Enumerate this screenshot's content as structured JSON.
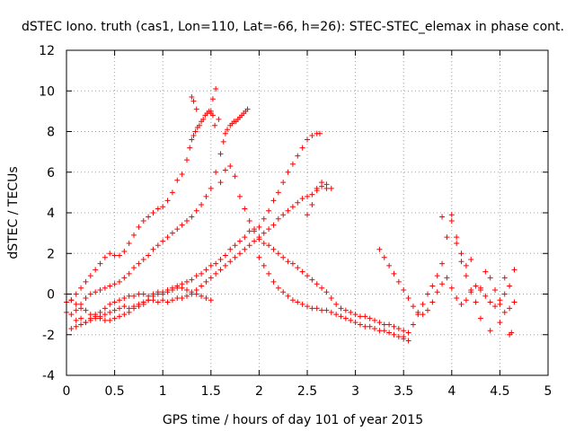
{
  "chart_data": {
    "type": "scatter",
    "title": "dSTEC Iono. truth (cas1, Lon=110, Lat=-66, h=26): STEC-STEC_elemax in phase cont.",
    "xlabel": "GPS time / hours of day 101 of year 2015",
    "ylabel": "dSTEC  / TECUs",
    "xlim": [
      0,
      5
    ],
    "ylim": [
      -4,
      12
    ],
    "xticks": [
      "0",
      "0.5",
      "1",
      "1.5",
      "2",
      "2.5",
      "3",
      "3.5",
      "4",
      "4.5",
      "5"
    ],
    "yticks": [
      "-4",
      "-2",
      "0",
      "2",
      "4",
      "6",
      "8",
      "10",
      "12"
    ],
    "grid": true,
    "marker": "plus",
    "color": "#ff0000",
    "series": [
      {
        "x": [
          0.0,
          0.05,
          0.1,
          0.15,
          0.2,
          0.25,
          0.3,
          0.35,
          0.4,
          0.45,
          0.5,
          0.55,
          0.6,
          0.65,
          0.7,
          0.75,
          0.8,
          0.85,
          0.9,
          0.95,
          1.0,
          1.05,
          1.1,
          1.15,
          1.2,
          1.25,
          1.28,
          1.3,
          1.32,
          1.34,
          1.36,
          1.38,
          1.4,
          1.42,
          1.44,
          1.46,
          1.48,
          1.5,
          1.52,
          1.54
        ],
        "y": [
          -0.4,
          -0.3,
          0.0,
          0.3,
          0.6,
          0.9,
          1.2,
          1.5,
          1.8,
          2.0,
          1.9,
          1.9,
          2.1,
          2.5,
          2.9,
          3.3,
          3.6,
          3.8,
          4.0,
          4.2,
          4.3,
          4.6,
          5.0,
          5.6,
          5.9,
          6.6,
          7.2,
          7.6,
          7.8,
          8.0,
          8.2,
          8.3,
          8.5,
          8.6,
          8.8,
          8.9,
          9.0,
          9.0,
          8.8,
          8.3
        ]
      },
      {
        "x": [
          0.0,
          0.05,
          0.1,
          0.15,
          0.2,
          0.25,
          0.3,
          0.35,
          0.4,
          0.45,
          0.5,
          0.55,
          0.6,
          0.65,
          0.7,
          0.75,
          0.8,
          0.85,
          0.9,
          0.95,
          1.0,
          1.05,
          1.1,
          1.15,
          1.2,
          1.25,
          1.3,
          1.35,
          1.4,
          1.45,
          1.5,
          1.55,
          1.6,
          1.63,
          1.65,
          1.67,
          1.7,
          1.72,
          1.74,
          1.76,
          1.78,
          1.8,
          1.82,
          1.84,
          1.86,
          1.88
        ],
        "y": [
          -0.9,
          -1.0,
          -0.8,
          -0.5,
          -0.2,
          0.0,
          0.1,
          0.2,
          0.3,
          0.4,
          0.5,
          0.6,
          0.8,
          1.0,
          1.3,
          1.5,
          1.7,
          1.9,
          2.2,
          2.4,
          2.6,
          2.8,
          3.0,
          3.2,
          3.4,
          3.6,
          3.8,
          4.1,
          4.4,
          4.8,
          5.2,
          6.0,
          6.9,
          7.5,
          7.9,
          8.1,
          8.3,
          8.4,
          8.5,
          8.5,
          8.6,
          8.7,
          8.8,
          8.9,
          9.0,
          9.1
        ]
      },
      {
        "x": [
          0.05,
          0.1,
          0.15,
          0.2,
          0.25,
          0.3,
          0.35,
          0.4,
          0.45,
          0.5,
          0.55,
          0.6,
          0.65,
          0.7,
          0.75,
          0.8,
          0.85,
          0.9,
          0.95,
          1.0,
          1.05,
          1.1,
          1.15,
          1.2,
          1.25,
          1.3,
          1.35,
          1.4,
          1.45,
          1.5,
          1.55,
          1.6,
          1.65,
          1.7,
          1.75,
          1.8,
          1.85,
          1.9,
          1.95,
          2.0,
          2.05,
          2.1,
          2.15,
          2.2,
          2.25,
          2.3,
          2.35,
          2.4,
          2.45,
          2.5,
          2.55,
          2.6,
          2.63
        ],
        "y": [
          -1.7,
          -1.6,
          -1.5,
          -1.4,
          -1.2,
          -1.0,
          -0.9,
          -0.7,
          -0.5,
          -0.4,
          -0.3,
          -0.2,
          -0.1,
          -0.1,
          0.0,
          0.0,
          -0.1,
          0.0,
          0.1,
          0.1,
          0.2,
          0.3,
          0.4,
          0.5,
          0.6,
          0.7,
          0.9,
          1.0,
          1.2,
          1.4,
          1.5,
          1.7,
          1.9,
          2.2,
          2.4,
          2.6,
          2.8,
          3.1,
          3.2,
          3.3,
          3.7,
          4.1,
          4.6,
          5.0,
          5.5,
          6.0,
          6.4,
          6.8,
          7.2,
          7.6,
          7.8,
          7.9,
          7.9
        ]
      },
      {
        "x": [
          0.1,
          0.15,
          0.2,
          0.25,
          0.3,
          0.35,
          0.4,
          0.45,
          0.5,
          0.55,
          0.6,
          0.65,
          0.7,
          0.75,
          0.8,
          0.85,
          0.9,
          0.95,
          1.0,
          1.05,
          1.1,
          1.15,
          1.2,
          1.25,
          1.3,
          1.35,
          1.4,
          1.45,
          1.5,
          1.55,
          1.6,
          1.65,
          1.7,
          1.75,
          1.8,
          1.85,
          1.9,
          1.95,
          2.0,
          2.05,
          2.1,
          2.15,
          2.2,
          2.25,
          2.3,
          2.35,
          2.4,
          2.45,
          2.5,
          2.55,
          2.6,
          2.65,
          2.7,
          2.75
        ],
        "y": [
          -1.3,
          -1.2,
          -1.4,
          -1.3,
          -1.2,
          -1.1,
          -1.0,
          -0.9,
          -0.8,
          -0.7,
          -0.6,
          -0.7,
          -0.6,
          -0.5,
          -0.5,
          -0.3,
          -0.3,
          -0.4,
          -0.3,
          -0.4,
          -0.3,
          -0.2,
          -0.2,
          -0.1,
          0.0,
          0.2,
          0.4,
          0.6,
          0.8,
          1.0,
          1.2,
          1.4,
          1.6,
          1.8,
          2.0,
          2.2,
          2.4,
          2.6,
          2.8,
          3.0,
          3.2,
          3.4,
          3.7,
          3.9,
          4.1,
          4.3,
          4.5,
          4.7,
          4.8,
          4.9,
          5.1,
          5.3,
          5.4,
          5.2
        ]
      },
      {
        "x": [
          1.6,
          1.65,
          1.7,
          1.75,
          1.8,
          1.85,
          1.9,
          1.95,
          2.0,
          2.05,
          2.1,
          2.15,
          2.2,
          2.25,
          2.3,
          2.35,
          2.4,
          2.45,
          2.5,
          2.55,
          2.6,
          2.65,
          2.7,
          2.75,
          2.8,
          2.85,
          2.9,
          2.95,
          3.0,
          3.05,
          3.1,
          3.15,
          3.2,
          3.25,
          3.3,
          3.35,
          3.4,
          3.45,
          3.5
        ],
        "y": [
          5.5,
          6.1,
          6.3,
          5.8,
          4.8,
          4.2,
          3.6,
          3.1,
          2.7,
          2.5,
          2.4,
          2.2,
          2.0,
          1.8,
          1.6,
          1.5,
          1.3,
          1.1,
          0.9,
          0.7,
          0.5,
          0.3,
          0.1,
          -0.2,
          -0.5,
          -0.7,
          -0.8,
          -0.9,
          -1.0,
          -1.1,
          -1.1,
          -1.2,
          -1.3,
          -1.4,
          -1.5,
          -1.5,
          -1.6,
          -1.7,
          -1.8
        ]
      },
      {
        "x": [
          0.0,
          0.05,
          0.1,
          0.15,
          0.2,
          0.25,
          0.3,
          0.35,
          0.4,
          0.45,
          0.5,
          0.55,
          0.6,
          0.65,
          0.7,
          0.75,
          0.8,
          0.85,
          0.9,
          0.95,
          1.0,
          1.05,
          1.1,
          1.15,
          1.2,
          1.25,
          1.3,
          1.35,
          1.4,
          1.45,
          1.5
        ],
        "y": [
          0.0,
          -0.3,
          -0.5,
          -0.7,
          -0.8,
          -1.0,
          -1.1,
          -1.2,
          -1.3,
          -1.3,
          -1.2,
          -1.1,
          -1.0,
          -0.9,
          -0.7,
          -0.6,
          -0.4,
          -0.3,
          -0.1,
          0.0,
          0.0,
          0.1,
          0.2,
          0.3,
          0.3,
          0.2,
          0.1,
          0.0,
          -0.1,
          -0.2,
          -0.3
        ]
      },
      {
        "x": [
          2.0,
          2.05,
          2.1,
          2.15,
          2.2,
          2.25,
          2.3,
          2.35,
          2.4,
          2.45,
          2.5,
          2.55,
          2.6,
          2.65,
          2.7,
          2.75,
          2.8,
          2.85,
          2.9,
          2.95,
          3.0,
          3.05,
          3.1,
          3.15,
          3.2,
          3.25,
          3.3,
          3.35,
          3.4,
          3.45,
          3.5,
          3.55
        ],
        "y": [
          1.8,
          1.4,
          1.0,
          0.6,
          0.3,
          0.1,
          -0.1,
          -0.3,
          -0.4,
          -0.5,
          -0.6,
          -0.7,
          -0.7,
          -0.8,
          -0.8,
          -0.9,
          -1.0,
          -1.1,
          -1.2,
          -1.3,
          -1.4,
          -1.5,
          -1.6,
          -1.6,
          -1.7,
          -1.8,
          -1.8,
          -1.9,
          -2.0,
          -2.1,
          -2.2,
          -2.3
        ]
      },
      {
        "x": [
          3.25,
          3.3,
          3.35,
          3.4,
          3.45,
          3.5,
          3.55,
          3.6,
          3.65,
          3.7,
          3.75,
          3.8,
          3.85,
          3.9,
          3.95,
          4.0,
          4.05,
          4.1,
          4.15,
          4.2,
          4.25,
          4.3,
          4.35,
          4.4,
          4.45,
          4.5,
          4.55,
          4.6,
          4.65
        ],
        "y": [
          2.2,
          1.8,
          1.4,
          1.0,
          0.6,
          0.2,
          -0.2,
          -0.6,
          -0.9,
          -1.0,
          -0.8,
          -0.4,
          0.1,
          0.5,
          0.8,
          0.3,
          -0.2,
          -0.5,
          -0.3,
          0.1,
          0.4,
          0.2,
          -0.1,
          -0.4,
          -0.6,
          -0.3,
          0.0,
          0.4,
          1.2
        ]
      },
      {
        "x": [
          3.5,
          3.55,
          3.6,
          3.65,
          3.7,
          3.75,
          3.8,
          3.85,
          3.9,
          3.95,
          4.0,
          4.05,
          4.1,
          4.15,
          4.2,
          4.25,
          4.3,
          4.35,
          4.4,
          4.45,
          4.5,
          4.55,
          4.6,
          4.65
        ],
        "y": [
          -2.1,
          -1.9,
          -1.5,
          -1.0,
          -0.5,
          0.0,
          0.4,
          0.9,
          1.5,
          2.8,
          3.6,
          2.5,
          1.6,
          0.9,
          0.2,
          -0.4,
          0.3,
          1.1,
          0.8,
          0.2,
          -0.5,
          -0.9,
          -0.7,
          -0.4
        ]
      },
      {
        "x": [
          1.3,
          1.32,
          1.35,
          1.5,
          1.52,
          1.55,
          1.58,
          2.5,
          2.55,
          2.6,
          2.65,
          2.7,
          3.9,
          4.0,
          4.05,
          4.1,
          4.15,
          4.2,
          4.3,
          4.4,
          4.5,
          4.55,
          4.6,
          4.62
        ],
        "y": [
          9.7,
          9.5,
          9.1,
          8.9,
          9.6,
          10.1,
          8.6,
          3.9,
          4.4,
          5.2,
          5.5,
          5.2,
          3.8,
          3.9,
          2.8,
          2.0,
          1.4,
          1.7,
          -1.2,
          -1.8,
          -1.4,
          0.8,
          -2.0,
          -1.9
        ]
      }
    ]
  }
}
